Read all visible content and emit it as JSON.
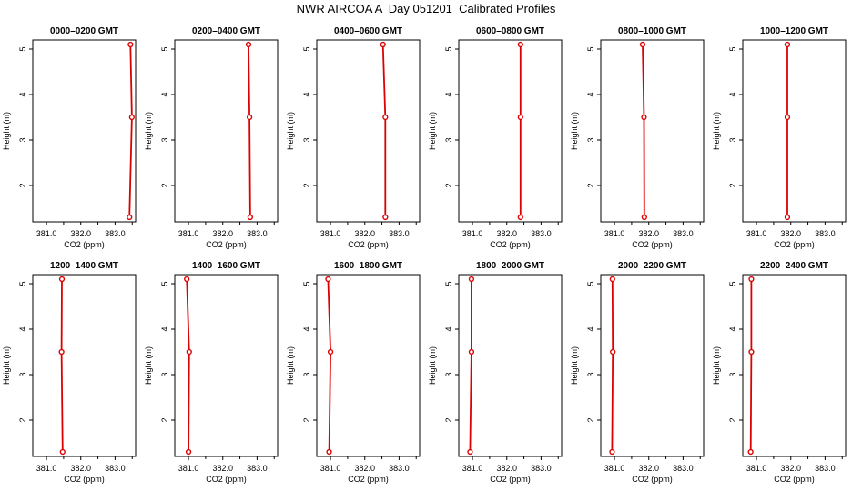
{
  "title": "NWR AIRCOA A  Day 051201  Calibrated Profiles",
  "colors": {
    "profile": "#dd0000",
    "axis": "#000000"
  },
  "chart_data": [
    {
      "type": "line",
      "title": "0000–0200 GMT",
      "xlabel": "CO2 (ppm)",
      "ylabel": "Height (m)",
      "xlim": [
        380.6,
        383.6
      ],
      "ylim": [
        1.2,
        5.2
      ],
      "xticks": [
        "381.0",
        "382.0",
        "383.0"
      ],
      "yticks": [
        "2",
        "3",
        "4",
        "5"
      ],
      "x": [
        383.42,
        383.49,
        383.45
      ],
      "y": [
        1.3,
        3.5,
        5.1
      ]
    },
    {
      "type": "line",
      "title": "0200–0400 GMT",
      "xlabel": "CO2 (ppm)",
      "ylabel": "Height (m)",
      "xlim": [
        380.6,
        383.6
      ],
      "ylim": [
        1.2,
        5.2
      ],
      "xticks": [
        "381.0",
        "382.0",
        "383.0"
      ],
      "yticks": [
        "2",
        "3",
        "4",
        "5"
      ],
      "x": [
        382.8,
        382.78,
        382.75
      ],
      "y": [
        1.3,
        3.5,
        5.1
      ]
    },
    {
      "type": "line",
      "title": "0400–0600 GMT",
      "xlabel": "CO2 (ppm)",
      "ylabel": "Height (m)",
      "xlim": [
        380.6,
        383.6
      ],
      "ylim": [
        1.2,
        5.2
      ],
      "xticks": [
        "381.0",
        "382.0",
        "383.0"
      ],
      "yticks": [
        "2",
        "3",
        "4",
        "5"
      ],
      "x": [
        382.6,
        382.6,
        382.53
      ],
      "y": [
        1.3,
        3.5,
        5.1
      ]
    },
    {
      "type": "line",
      "title": "0600–0800 GMT",
      "xlabel": "CO2 (ppm)",
      "ylabel": "Height (m)",
      "xlim": [
        380.6,
        383.6
      ],
      "ylim": [
        1.2,
        5.2
      ],
      "xticks": [
        "381.0",
        "382.0",
        "383.0"
      ],
      "yticks": [
        "2",
        "3",
        "4",
        "5"
      ],
      "x": [
        382.4,
        382.4,
        382.4
      ],
      "y": [
        1.3,
        3.5,
        5.1
      ]
    },
    {
      "type": "line",
      "title": "0800–1000 GMT",
      "xlabel": "CO2 (ppm)",
      "ylabel": "Height (m)",
      "xlim": [
        380.6,
        383.6
      ],
      "ylim": [
        1.2,
        5.2
      ],
      "xticks": [
        "381.0",
        "382.0",
        "383.0"
      ],
      "yticks": [
        "2",
        "3",
        "4",
        "5"
      ],
      "x": [
        381.87,
        381.86,
        381.82
      ],
      "y": [
        1.3,
        3.5,
        5.1
      ]
    },
    {
      "type": "line",
      "title": "1000–1200 GMT",
      "xlabel": "CO2 (ppm)",
      "ylabel": "Height (m)",
      "xlim": [
        380.6,
        383.6
      ],
      "ylim": [
        1.2,
        5.2
      ],
      "xticks": [
        "381.0",
        "382.0",
        "383.0"
      ],
      "yticks": [
        "2",
        "3",
        "4",
        "5"
      ],
      "x": [
        381.9,
        381.9,
        381.9
      ],
      "y": [
        1.3,
        3.5,
        5.1
      ]
    },
    {
      "type": "line",
      "title": "1200–1400 GMT",
      "xlabel": "CO2 (ppm)",
      "ylabel": "Height (m)",
      "xlim": [
        380.6,
        383.6
      ],
      "ylim": [
        1.2,
        5.2
      ],
      "xticks": [
        "381.0",
        "382.0",
        "383.0"
      ],
      "yticks": [
        "2",
        "3",
        "4",
        "5"
      ],
      "x": [
        381.47,
        381.44,
        381.45
      ],
      "y": [
        1.3,
        3.5,
        5.1
      ]
    },
    {
      "type": "line",
      "title": "1400–1600 GMT",
      "xlabel": "CO2 (ppm)",
      "ylabel": "Height (m)",
      "xlim": [
        380.6,
        383.6
      ],
      "ylim": [
        1.2,
        5.2
      ],
      "xticks": [
        "381.0",
        "382.0",
        "383.0"
      ],
      "yticks": [
        "2",
        "3",
        "4",
        "5"
      ],
      "x": [
        381.0,
        381.02,
        380.95
      ],
      "y": [
        1.3,
        3.5,
        5.1
      ]
    },
    {
      "type": "line",
      "title": "1600–1800 GMT",
      "xlabel": "CO2 (ppm)",
      "ylabel": "Height (m)",
      "xlim": [
        380.6,
        383.6
      ],
      "ylim": [
        1.2,
        5.2
      ],
      "xticks": [
        "381.0",
        "382.0",
        "383.0"
      ],
      "yticks": [
        "2",
        "3",
        "4",
        "5"
      ],
      "x": [
        380.96,
        381.0,
        380.93
      ],
      "y": [
        1.3,
        3.5,
        5.1
      ]
    },
    {
      "type": "line",
      "title": "1800–2000 GMT",
      "xlabel": "CO2 (ppm)",
      "ylabel": "Height (m)",
      "xlim": [
        380.6,
        383.6
      ],
      "ylim": [
        1.2,
        5.2
      ],
      "xticks": [
        "381.0",
        "382.0",
        "383.0"
      ],
      "yticks": [
        "2",
        "3",
        "4",
        "5"
      ],
      "x": [
        380.93,
        380.97,
        380.97
      ],
      "y": [
        1.3,
        3.5,
        5.1
      ]
    },
    {
      "type": "line",
      "title": "2000–2200 GMT",
      "xlabel": "CO2 (ppm)",
      "ylabel": "Height (m)",
      "xlim": [
        380.6,
        383.6
      ],
      "ylim": [
        1.2,
        5.2
      ],
      "xticks": [
        "381.0",
        "382.0",
        "383.0"
      ],
      "yticks": [
        "2",
        "3",
        "4",
        "5"
      ],
      "x": [
        380.93,
        380.95,
        380.94
      ],
      "y": [
        1.3,
        3.5,
        5.1
      ]
    },
    {
      "type": "line",
      "title": "2200–2400 GMT",
      "xlabel": "CO2 (ppm)",
      "ylabel": "Height (m)",
      "xlim": [
        380.6,
        383.6
      ],
      "ylim": [
        1.2,
        5.2
      ],
      "xticks": [
        "381.0",
        "382.0",
        "383.0"
      ],
      "yticks": [
        "2",
        "3",
        "4",
        "5"
      ],
      "x": [
        380.83,
        380.85,
        380.85
      ],
      "y": [
        1.3,
        3.5,
        5.1
      ]
    }
  ]
}
